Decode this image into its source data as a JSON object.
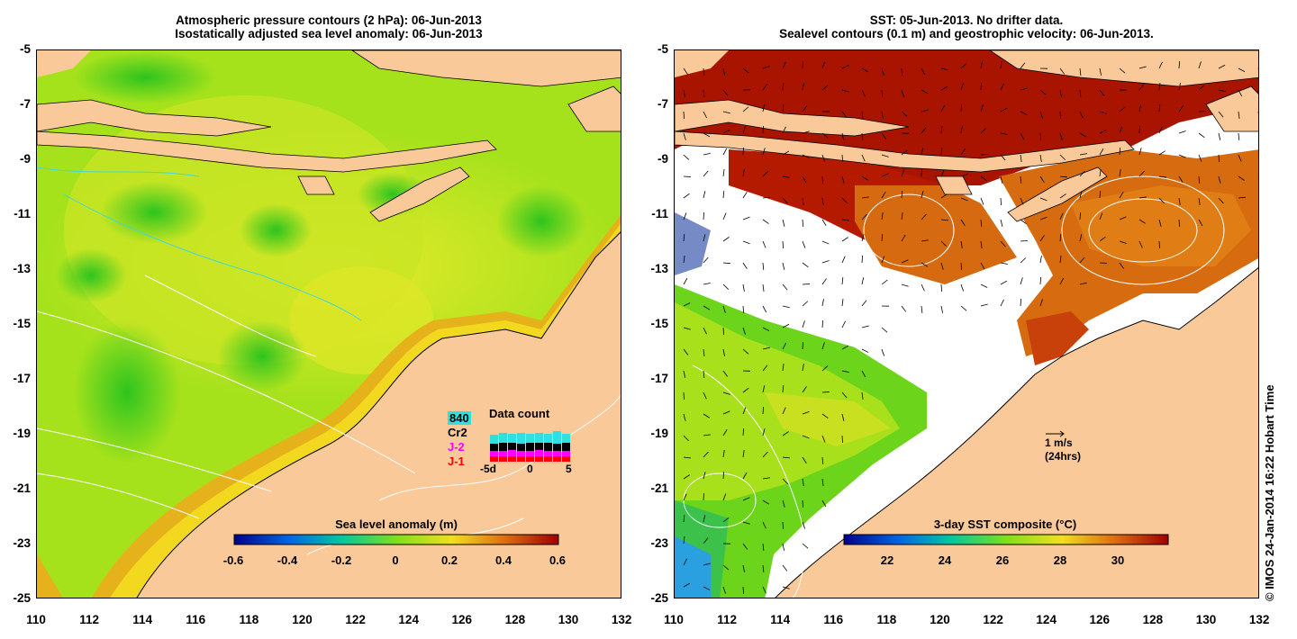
{
  "left_panel": {
    "title_line1": "Atmospheric pressure contours (2 hPa): 06-Jun-2013",
    "title_line2": "Isostatically adjusted sea level anomaly: 06-Jun-2013",
    "colorbar": {
      "label": "Sea level anomaly (m)",
      "ticks": [
        "-0.6",
        "-0.4",
        "-0.2",
        "0",
        "0.2",
        "0.4",
        "0.6"
      ]
    },
    "data_count": {
      "title": "Data count",
      "satellites": [
        {
          "name": "840",
          "color": "#30e0e0"
        },
        {
          "name": "Cr2",
          "color": "#000000"
        },
        {
          "name": "J-2",
          "color": "#ff00ff"
        },
        {
          "name": "J-1",
          "color": "#ff0000"
        }
      ],
      "axis_labels": [
        "-5d",
        "0",
        "5"
      ]
    }
  },
  "right_panel": {
    "title_line1": "SST: 05-Jun-2013. No drifter data.",
    "title_line2": "Sealevel contours (0.1 m) and geostrophic velocity: 06-Jun-2013.",
    "scale_arrow_label1": "1 m/s",
    "scale_arrow_label2": "(24hrs)",
    "colorbar": {
      "label": "3-day SST composite (°C)",
      "ticks": [
        "22",
        "24",
        "26",
        "28",
        "30"
      ]
    }
  },
  "axes": {
    "lat_ticks": [
      "-5",
      "-7",
      "-9",
      "-11",
      "-13",
      "-15",
      "-17",
      "-19",
      "-21",
      "-23",
      "-25"
    ],
    "lon_ticks": [
      "110",
      "112",
      "114",
      "116",
      "118",
      "120",
      "122",
      "124",
      "126",
      "128",
      "130",
      "132"
    ]
  },
  "credit": "© IMOS 24-Jan-2014 16:22 Hobart Time",
  "colors": {
    "land": "#fac999",
    "ocean_green": "#7ee01a",
    "ocean_yellow": "#c9e61f",
    "sst_red": "#b01a00",
    "sst_orange": "#d9680e"
  }
}
